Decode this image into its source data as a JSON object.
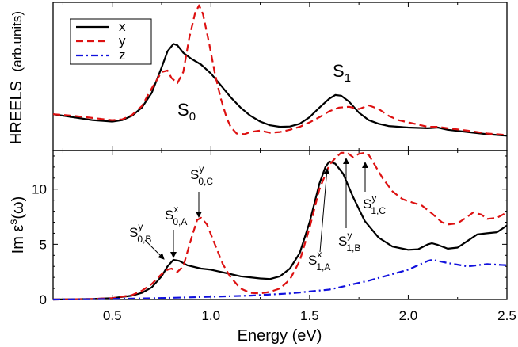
{
  "chart_data": [
    {
      "type": "line",
      "title": "",
      "ylabel_main": "HREELS",
      "ylabel_unit": "(arb.units)",
      "xlim": [
        0.2,
        2.5
      ],
      "ylim": [
        0,
        1
      ],
      "legend": {
        "placement": "top-left",
        "entries": [
          {
            "name": "x",
            "color": "#000000",
            "style": "solid"
          },
          {
            "name": "y",
            "color": "#dd1111",
            "style": "dashed"
          },
          {
            "name": "z",
            "color": "#1111dd",
            "style": "dashdot"
          }
        ]
      },
      "annotations": {
        "s0": {
          "main": "S",
          "sub": "0"
        },
        "s1": {
          "main": "S",
          "sub": "1"
        }
      },
      "series": [
        {
          "name": "x",
          "color": "#000000",
          "style": "solid",
          "points": [
            [
              0.2,
              0.245
            ],
            [
              0.3,
              0.225
            ],
            [
              0.4,
              0.205
            ],
            [
              0.5,
              0.195
            ],
            [
              0.55,
              0.205
            ],
            [
              0.6,
              0.235
            ],
            [
              0.65,
              0.29
            ],
            [
              0.7,
              0.39
            ],
            [
              0.75,
              0.56
            ],
            [
              0.78,
              0.67
            ],
            [
              0.81,
              0.72
            ],
            [
              0.83,
              0.71
            ],
            [
              0.86,
              0.66
            ],
            [
              0.9,
              0.62
            ],
            [
              0.95,
              0.58
            ],
            [
              1.0,
              0.52
            ],
            [
              1.05,
              0.44
            ],
            [
              1.1,
              0.36
            ],
            [
              1.15,
              0.29
            ],
            [
              1.2,
              0.235
            ],
            [
              1.25,
              0.195
            ],
            [
              1.3,
              0.17
            ],
            [
              1.35,
              0.16
            ],
            [
              1.4,
              0.162
            ],
            [
              1.45,
              0.18
            ],
            [
              1.5,
              0.225
            ],
            [
              1.55,
              0.29
            ],
            [
              1.6,
              0.35
            ],
            [
              1.63,
              0.375
            ],
            [
              1.66,
              0.37
            ],
            [
              1.7,
              0.33
            ],
            [
              1.75,
              0.255
            ],
            [
              1.8,
              0.205
            ],
            [
              1.85,
              0.18
            ],
            [
              1.9,
              0.165
            ],
            [
              2.0,
              0.155
            ],
            [
              2.1,
              0.15
            ],
            [
              2.15,
              0.155
            ],
            [
              2.2,
              0.14
            ],
            [
              2.3,
              0.125
            ],
            [
              2.4,
              0.11
            ],
            [
              2.5,
              0.1
            ]
          ]
        },
        {
          "name": "y",
          "color": "#dd1111",
          "style": "dashed",
          "points": [
            [
              0.2,
              0.245
            ],
            [
              0.3,
              0.235
            ],
            [
              0.4,
              0.22
            ],
            [
              0.5,
              0.205
            ],
            [
              0.55,
              0.21
            ],
            [
              0.6,
              0.24
            ],
            [
              0.65,
              0.3
            ],
            [
              0.7,
              0.42
            ],
            [
              0.75,
              0.53
            ],
            [
              0.78,
              0.54
            ],
            [
              0.8,
              0.49
            ],
            [
              0.83,
              0.455
            ],
            [
              0.86,
              0.53
            ],
            [
              0.89,
              0.76
            ],
            [
              0.92,
              0.93
            ],
            [
              0.94,
              0.98
            ],
            [
              0.96,
              0.92
            ],
            [
              0.99,
              0.73
            ],
            [
              1.02,
              0.52
            ],
            [
              1.05,
              0.35
            ],
            [
              1.08,
              0.22
            ],
            [
              1.1,
              0.16
            ],
            [
              1.13,
              0.115
            ],
            [
              1.17,
              0.11
            ],
            [
              1.2,
              0.125
            ],
            [
              1.25,
              0.135
            ],
            [
              1.3,
              0.12
            ],
            [
              1.35,
              0.125
            ],
            [
              1.4,
              0.14
            ],
            [
              1.45,
              0.16
            ],
            [
              1.5,
              0.19
            ],
            [
              1.55,
              0.225
            ],
            [
              1.6,
              0.265
            ],
            [
              1.65,
              0.29
            ],
            [
              1.7,
              0.295
            ],
            [
              1.75,
              0.28
            ],
            [
              1.8,
              0.305
            ],
            [
              1.85,
              0.28
            ],
            [
              1.9,
              0.235
            ],
            [
              1.95,
              0.205
            ],
            [
              2.0,
              0.19
            ],
            [
              2.05,
              0.175
            ],
            [
              2.1,
              0.16
            ],
            [
              2.15,
              0.16
            ],
            [
              2.2,
              0.15
            ],
            [
              2.3,
              0.135
            ],
            [
              2.4,
              0.115
            ],
            [
              2.5,
              0.105
            ]
          ]
        }
      ]
    },
    {
      "type": "line",
      "title": "",
      "xlabel": "Energy (eV)",
      "ylabel": "Im ε^s(ω)",
      "xlim": [
        0.2,
        2.5
      ],
      "ylim": [
        0,
        13.5
      ],
      "xticks": [
        0.5,
        1.0,
        1.5,
        2.0,
        2.5
      ],
      "xtick_labels": [
        "0.5",
        "1.0",
        "1.5",
        "2.0",
        "2.5"
      ],
      "yticks": [
        0,
        5,
        10
      ],
      "ytick_labels": [
        "0",
        "5",
        "10"
      ],
      "annotations": {
        "s0b": {
          "main": "S",
          "sub": "0,B",
          "sup": "y"
        },
        "s0a": {
          "main": "S",
          "sub": "0,A",
          "sup": "x"
        },
        "s0c": {
          "main": "S",
          "sub": "0,C",
          "sup": "y"
        },
        "s1a": {
          "main": "S",
          "sub": "1,A",
          "sup": "x"
        },
        "s1b": {
          "main": "S",
          "sub": "1,B",
          "sup": "y"
        },
        "s1c": {
          "main": "S",
          "sub": "1,C",
          "sup": "y"
        }
      },
      "series": [
        {
          "name": "x",
          "color": "#000000",
          "style": "solid",
          "points": [
            [
              0.2,
              0.0
            ],
            [
              0.4,
              0.05
            ],
            [
              0.5,
              0.12
            ],
            [
              0.6,
              0.35
            ],
            [
              0.65,
              0.6
            ],
            [
              0.7,
              1.1
            ],
            [
              0.75,
              2.1
            ],
            [
              0.78,
              3.0
            ],
            [
              0.81,
              3.6
            ],
            [
              0.84,
              3.5
            ],
            [
              0.88,
              3.1
            ],
            [
              0.95,
              2.8
            ],
            [
              1.0,
              2.7
            ],
            [
              1.05,
              2.5
            ],
            [
              1.1,
              2.3
            ],
            [
              1.15,
              2.1
            ],
            [
              1.2,
              2.0
            ],
            [
              1.25,
              1.9
            ],
            [
              1.3,
              1.85
            ],
            [
              1.35,
              2.1
            ],
            [
              1.4,
              2.8
            ],
            [
              1.45,
              4.2
            ],
            [
              1.5,
              7.0
            ],
            [
              1.55,
              10.5
            ],
            [
              1.58,
              12.0
            ],
            [
              1.6,
              12.5
            ],
            [
              1.63,
              12.3
            ],
            [
              1.67,
              11.4
            ],
            [
              1.72,
              9.3
            ],
            [
              1.78,
              7.1
            ],
            [
              1.85,
              5.6
            ],
            [
              1.92,
              4.8
            ],
            [
              2.0,
              4.5
            ],
            [
              2.05,
              4.55
            ],
            [
              2.1,
              5.0
            ],
            [
              2.12,
              5.1
            ],
            [
              2.15,
              4.95
            ],
            [
              2.2,
              4.6
            ],
            [
              2.25,
              4.7
            ],
            [
              2.3,
              5.3
            ],
            [
              2.35,
              5.9
            ],
            [
              2.4,
              6.0
            ],
            [
              2.45,
              6.1
            ],
            [
              2.5,
              6.7
            ]
          ]
        },
        {
          "name": "y",
          "color": "#dd1111",
          "style": "dashed",
          "points": [
            [
              0.2,
              0.0
            ],
            [
              0.4,
              0.05
            ],
            [
              0.5,
              0.12
            ],
            [
              0.6,
              0.4
            ],
            [
              0.65,
              0.8
            ],
            [
              0.7,
              1.4
            ],
            [
              0.75,
              2.3
            ],
            [
              0.78,
              2.7
            ],
            [
              0.8,
              2.8
            ],
            [
              0.83,
              2.5
            ],
            [
              0.86,
              3.0
            ],
            [
              0.9,
              5.5
            ],
            [
              0.93,
              7.2
            ],
            [
              0.95,
              7.4
            ],
            [
              0.98,
              6.8
            ],
            [
              1.02,
              5.0
            ],
            [
              1.06,
              3.2
            ],
            [
              1.1,
              2.0
            ],
            [
              1.15,
              1.0
            ],
            [
              1.2,
              0.6
            ],
            [
              1.25,
              0.55
            ],
            [
              1.3,
              0.7
            ],
            [
              1.35,
              1.0
            ],
            [
              1.4,
              1.8
            ],
            [
              1.45,
              3.5
            ],
            [
              1.5,
              6.5
            ],
            [
              1.55,
              10.0
            ],
            [
              1.6,
              12.2
            ],
            [
              1.63,
              12.8
            ],
            [
              1.66,
              13.3
            ],
            [
              1.69,
              13.3
            ],
            [
              1.72,
              12.9
            ],
            [
              1.75,
              13.2
            ],
            [
              1.78,
              13.3
            ],
            [
              1.8,
              13.1
            ],
            [
              1.83,
              12.2
            ],
            [
              1.87,
              11.0
            ],
            [
              1.92,
              9.8
            ],
            [
              1.97,
              9.1
            ],
            [
              2.02,
              8.8
            ],
            [
              2.07,
              8.5
            ],
            [
              2.12,
              7.8
            ],
            [
              2.17,
              7.0
            ],
            [
              2.2,
              6.8
            ],
            [
              2.25,
              6.9
            ],
            [
              2.3,
              7.5
            ],
            [
              2.33,
              7.9
            ],
            [
              2.37,
              7.7
            ],
            [
              2.4,
              7.3
            ],
            [
              2.45,
              7.4
            ],
            [
              2.5,
              7.9
            ]
          ]
        },
        {
          "name": "z",
          "color": "#1111dd",
          "style": "dashdot",
          "points": [
            [
              0.2,
              0.0
            ],
            [
              0.4,
              0.03
            ],
            [
              0.6,
              0.08
            ],
            [
              0.8,
              0.15
            ],
            [
              1.0,
              0.25
            ],
            [
              1.2,
              0.35
            ],
            [
              1.4,
              0.55
            ],
            [
              1.6,
              0.9
            ],
            [
              1.7,
              1.3
            ],
            [
              1.8,
              1.7
            ],
            [
              1.9,
              2.2
            ],
            [
              2.0,
              2.7
            ],
            [
              2.05,
              3.1
            ],
            [
              2.1,
              3.5
            ],
            [
              2.12,
              3.6
            ],
            [
              2.15,
              3.5
            ],
            [
              2.2,
              3.3
            ],
            [
              2.3,
              3.0
            ],
            [
              2.4,
              3.2
            ],
            [
              2.5,
              3.1
            ]
          ]
        }
      ]
    }
  ]
}
